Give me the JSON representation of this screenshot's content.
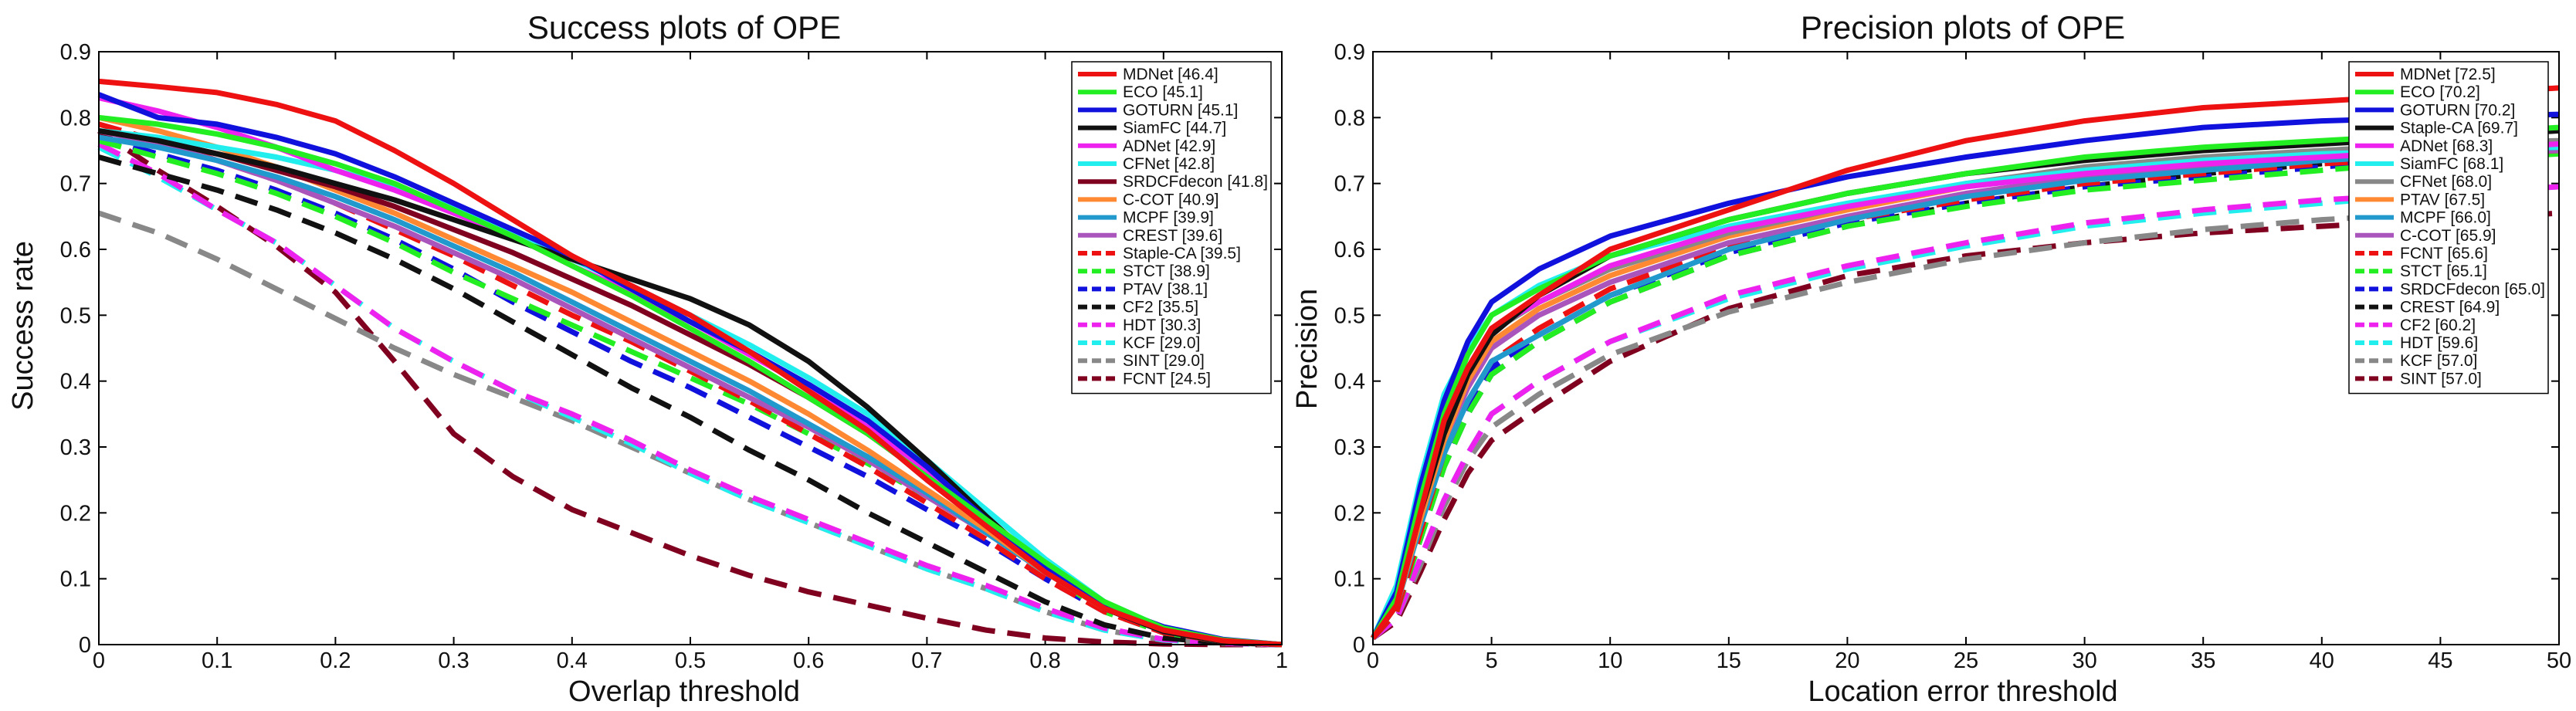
{
  "chart_data": [
    {
      "type": "line",
      "title": "Success plots of OPE",
      "xlabel": "Overlap threshold",
      "ylabel": "Success rate",
      "xlim": [
        0,
        1
      ],
      "ylim": [
        0,
        0.9
      ],
      "xticks": [
        "0",
        "0.1",
        "0.2",
        "0.3",
        "0.4",
        "0.5",
        "0.6",
        "0.7",
        "0.8",
        "0.9",
        "1"
      ],
      "yticks": [
        "0",
        "0.1",
        "0.2",
        "0.3",
        "0.4",
        "0.5",
        "0.6",
        "0.7",
        "0.8",
        "0.9"
      ],
      "legend_position": "top-right",
      "x": [
        0,
        0.05,
        0.1,
        0.15,
        0.2,
        0.25,
        0.3,
        0.35,
        0.4,
        0.45,
        0.5,
        0.55,
        0.6,
        0.65,
        0.7,
        0.75,
        0.8,
        0.85,
        0.9,
        0.95,
        1.0
      ],
      "series": [
        {
          "name": "MDNet [46.4]",
          "color": "#ee1111",
          "dash": false,
          "values": [
            0.855,
            0.847,
            0.838,
            0.82,
            0.795,
            0.75,
            0.7,
            0.645,
            0.59,
            0.545,
            0.5,
            0.445,
            0.385,
            0.325,
            0.25,
            0.18,
            0.11,
            0.055,
            0.022,
            0.006,
            0
          ]
        },
        {
          "name": "ECO [45.1]",
          "color": "#22ee22",
          "dash": false,
          "values": [
            0.8,
            0.79,
            0.775,
            0.755,
            0.73,
            0.7,
            0.66,
            0.62,
            0.575,
            0.53,
            0.48,
            0.43,
            0.375,
            0.32,
            0.255,
            0.19,
            0.125,
            0.065,
            0.025,
            0.007,
            0
          ]
        },
        {
          "name": "GOTURN [45.1]",
          "color": "#1111dd",
          "dash": false,
          "values": [
            0.835,
            0.8,
            0.79,
            0.77,
            0.745,
            0.71,
            0.67,
            0.63,
            0.59,
            0.54,
            0.49,
            0.445,
            0.395,
            0.34,
            0.27,
            0.19,
            0.115,
            0.06,
            0.027,
            0.008,
            0
          ]
        },
        {
          "name": "SiamFC [44.7]",
          "color": "#111111",
          "dash": false,
          "values": [
            0.78,
            0.765,
            0.745,
            0.725,
            0.7,
            0.675,
            0.645,
            0.615,
            0.585,
            0.555,
            0.525,
            0.485,
            0.43,
            0.36,
            0.28,
            0.195,
            0.115,
            0.055,
            0.02,
            0.005,
            0
          ]
        },
        {
          "name": "ADNet [42.9]",
          "color": "#ee22ee",
          "dash": false,
          "values": [
            0.83,
            0.81,
            0.785,
            0.755,
            0.72,
            0.69,
            0.655,
            0.62,
            0.575,
            0.535,
            0.49,
            0.44,
            0.39,
            0.33,
            0.26,
            0.185,
            0.115,
            0.055,
            0.02,
            0.006,
            0
          ]
        },
        {
          "name": "CFNet [42.8]",
          "color": "#22eeee",
          "dash": false,
          "values": [
            0.78,
            0.77,
            0.755,
            0.74,
            0.72,
            0.695,
            0.665,
            0.625,
            0.585,
            0.545,
            0.5,
            0.455,
            0.405,
            0.35,
            0.28,
            0.205,
            0.13,
            0.065,
            0.025,
            0.007,
            0
          ]
        },
        {
          "name": "SRDCFdecon [41.8]",
          "color": "#800020",
          "dash": false,
          "values": [
            0.78,
            0.765,
            0.745,
            0.72,
            0.695,
            0.665,
            0.63,
            0.595,
            0.555,
            0.515,
            0.47,
            0.425,
            0.375,
            0.32,
            0.255,
            0.185,
            0.115,
            0.055,
            0.02,
            0.005,
            0
          ]
        },
        {
          "name": "C-COT [40.9]",
          "color": "#ff8833",
          "dash": false,
          "values": [
            0.8,
            0.78,
            0.755,
            0.725,
            0.69,
            0.655,
            0.615,
            0.575,
            0.535,
            0.49,
            0.445,
            0.4,
            0.35,
            0.295,
            0.235,
            0.175,
            0.11,
            0.055,
            0.02,
            0.005,
            0
          ]
        },
        {
          "name": "MCPF [39.9]",
          "color": "#2299cc",
          "dash": false,
          "values": [
            0.77,
            0.755,
            0.735,
            0.71,
            0.68,
            0.645,
            0.605,
            0.565,
            0.52,
            0.475,
            0.43,
            0.385,
            0.335,
            0.285,
            0.23,
            0.17,
            0.11,
            0.055,
            0.02,
            0.005,
            0
          ]
        },
        {
          "name": "CREST [39.6]",
          "color": "#aa55bb",
          "dash": false,
          "values": [
            0.78,
            0.76,
            0.735,
            0.705,
            0.67,
            0.635,
            0.595,
            0.555,
            0.51,
            0.465,
            0.42,
            0.375,
            0.33,
            0.28,
            0.225,
            0.17,
            0.11,
            0.055,
            0.02,
            0.005,
            0
          ]
        },
        {
          "name": "Staple-CA [39.5]",
          "color": "#ee1111",
          "dash": true,
          "values": [
            0.79,
            0.765,
            0.735,
            0.705,
            0.67,
            0.63,
            0.59,
            0.545,
            0.5,
            0.46,
            0.415,
            0.37,
            0.32,
            0.27,
            0.215,
            0.16,
            0.1,
            0.05,
            0.018,
            0.005,
            0
          ]
        },
        {
          "name": "STCT [38.9]",
          "color": "#22ee22",
          "dash": true,
          "values": [
            0.765,
            0.74,
            0.715,
            0.685,
            0.65,
            0.61,
            0.565,
            0.525,
            0.485,
            0.445,
            0.405,
            0.365,
            0.32,
            0.275,
            0.225,
            0.17,
            0.11,
            0.05,
            0.018,
            0.005,
            0
          ]
        },
        {
          "name": "PTAV [38.1]",
          "color": "#1111dd",
          "dash": true,
          "values": [
            0.77,
            0.745,
            0.72,
            0.69,
            0.655,
            0.615,
            0.57,
            0.52,
            0.475,
            0.43,
            0.39,
            0.345,
            0.3,
            0.255,
            0.205,
            0.155,
            0.1,
            0.05,
            0.018,
            0.005,
            0
          ]
        },
        {
          "name": "CF2 [35.5]",
          "color": "#111111",
          "dash": true,
          "values": [
            0.74,
            0.715,
            0.69,
            0.66,
            0.625,
            0.585,
            0.54,
            0.49,
            0.44,
            0.39,
            0.345,
            0.295,
            0.25,
            0.2,
            0.155,
            0.11,
            0.065,
            0.03,
            0.01,
            0.003,
            0
          ]
        },
        {
          "name": "HDT [30.3]",
          "color": "#ee22ee",
          "dash": true,
          "values": [
            0.76,
            0.715,
            0.66,
            0.61,
            0.545,
            0.48,
            0.43,
            0.385,
            0.35,
            0.31,
            0.265,
            0.225,
            0.19,
            0.155,
            0.12,
            0.09,
            0.055,
            0.025,
            0.008,
            0.002,
            0
          ]
        },
        {
          "name": "KCF [29.0]",
          "color": "#22eeee",
          "dash": true,
          "values": [
            0.755,
            0.71,
            0.66,
            0.61,
            0.545,
            0.48,
            0.43,
            0.385,
            0.345,
            0.305,
            0.26,
            0.22,
            0.185,
            0.15,
            0.115,
            0.085,
            0.05,
            0.022,
            0.007,
            0.002,
            0
          ]
        },
        {
          "name": "SINT [29.0]",
          "color": "#888888",
          "dash": true,
          "values": [
            0.655,
            0.625,
            0.585,
            0.54,
            0.495,
            0.45,
            0.41,
            0.375,
            0.34,
            0.3,
            0.26,
            0.22,
            0.185,
            0.15,
            0.115,
            0.085,
            0.05,
            0.022,
            0.007,
            0.002,
            0
          ]
        },
        {
          "name": "FCNT [24.5]",
          "color": "#800020",
          "dash": true,
          "values": [
            0.78,
            0.72,
            0.665,
            0.605,
            0.535,
            0.43,
            0.32,
            0.255,
            0.205,
            0.17,
            0.135,
            0.105,
            0.08,
            0.06,
            0.04,
            0.022,
            0.01,
            0.004,
            0.001,
            0,
            0
          ]
        }
      ]
    },
    {
      "type": "line",
      "title": "Precision plots of OPE",
      "xlabel": "Location error threshold",
      "ylabel": "Precision",
      "xlim": [
        0,
        50
      ],
      "ylim": [
        0,
        0.9
      ],
      "xticks": [
        "0",
        "5",
        "10",
        "15",
        "20",
        "25",
        "30",
        "35",
        "40",
        "45",
        "50"
      ],
      "yticks": [
        "0",
        "0.1",
        "0.2",
        "0.3",
        "0.4",
        "0.5",
        "0.6",
        "0.7",
        "0.8",
        "0.9"
      ],
      "legend_position": "top-right",
      "x": [
        0,
        1,
        2,
        3,
        4,
        5,
        7,
        10,
        15,
        20,
        25,
        30,
        35,
        40,
        45,
        50
      ],
      "series": [
        {
          "name": "MDNet [72.5]",
          "color": "#ee1111",
          "dash": false,
          "values": [
            0.01,
            0.06,
            0.2,
            0.34,
            0.42,
            0.48,
            0.53,
            0.6,
            0.66,
            0.72,
            0.765,
            0.795,
            0.815,
            0.825,
            0.835,
            0.845
          ]
        },
        {
          "name": "ECO [70.2]",
          "color": "#22ee22",
          "dash": false,
          "values": [
            0.01,
            0.07,
            0.22,
            0.35,
            0.44,
            0.5,
            0.54,
            0.59,
            0.645,
            0.685,
            0.715,
            0.74,
            0.755,
            0.765,
            0.775,
            0.785
          ]
        },
        {
          "name": "GOTURN [70.2]",
          "color": "#1111dd",
          "dash": false,
          "values": [
            0.01,
            0.08,
            0.24,
            0.37,
            0.46,
            0.52,
            0.57,
            0.62,
            0.67,
            0.71,
            0.74,
            0.765,
            0.785,
            0.795,
            0.8,
            0.805
          ]
        },
        {
          "name": "Staple-CA [69.7]",
          "color": "#111111",
          "dash": false,
          "values": [
            0.01,
            0.06,
            0.2,
            0.32,
            0.41,
            0.47,
            0.53,
            0.59,
            0.645,
            0.685,
            0.715,
            0.735,
            0.75,
            0.76,
            0.77,
            0.78
          ]
        },
        {
          "name": "ADNet [68.3]",
          "color": "#ee22ee",
          "dash": false,
          "values": [
            0.01,
            0.07,
            0.21,
            0.33,
            0.42,
            0.48,
            0.52,
            0.575,
            0.63,
            0.665,
            0.695,
            0.715,
            0.73,
            0.74,
            0.75,
            0.76
          ]
        },
        {
          "name": "SiamFC [68.1]",
          "color": "#22eeee",
          "dash": false,
          "values": [
            0.01,
            0.09,
            0.25,
            0.38,
            0.45,
            0.5,
            0.545,
            0.59,
            0.635,
            0.67,
            0.7,
            0.72,
            0.735,
            0.745,
            0.75,
            0.755
          ]
        },
        {
          "name": "CFNet [68.0]",
          "color": "#888888",
          "dash": false,
          "values": [
            0.01,
            0.07,
            0.22,
            0.34,
            0.42,
            0.475,
            0.52,
            0.57,
            0.625,
            0.665,
            0.7,
            0.725,
            0.74,
            0.75,
            0.76,
            0.765
          ]
        },
        {
          "name": "PTAV [67.5]",
          "color": "#ff8833",
          "dash": false,
          "values": [
            0.01,
            0.06,
            0.19,
            0.31,
            0.4,
            0.46,
            0.51,
            0.56,
            0.62,
            0.66,
            0.695,
            0.72,
            0.735,
            0.745,
            0.755,
            0.76
          ]
        },
        {
          "name": "MCPF [66.0]",
          "color": "#2299cc",
          "dash": false,
          "values": [
            0.01,
            0.06,
            0.18,
            0.29,
            0.37,
            0.43,
            0.47,
            0.53,
            0.6,
            0.645,
            0.68,
            0.705,
            0.72,
            0.735,
            0.745,
            0.755
          ]
        },
        {
          "name": "C-COT [65.9]",
          "color": "#aa55bb",
          "dash": false,
          "values": [
            0.01,
            0.06,
            0.19,
            0.31,
            0.39,
            0.45,
            0.5,
            0.55,
            0.61,
            0.65,
            0.685,
            0.71,
            0.725,
            0.735,
            0.745,
            0.75
          ]
        },
        {
          "name": "FCNT [65.6]",
          "color": "#ee1111",
          "dash": true,
          "values": [
            0.01,
            0.05,
            0.17,
            0.29,
            0.37,
            0.43,
            0.48,
            0.54,
            0.605,
            0.645,
            0.675,
            0.7,
            0.715,
            0.73,
            0.74,
            0.75
          ]
        },
        {
          "name": "STCT [65.1]",
          "color": "#22ee22",
          "dash": true,
          "values": [
            0.01,
            0.05,
            0.16,
            0.27,
            0.35,
            0.41,
            0.46,
            0.52,
            0.59,
            0.635,
            0.665,
            0.69,
            0.705,
            0.72,
            0.735,
            0.745
          ]
        },
        {
          "name": "SRDCFdecon [65.0]",
          "color": "#1111dd",
          "dash": true,
          "values": [
            0.01,
            0.05,
            0.17,
            0.28,
            0.36,
            0.42,
            0.47,
            0.53,
            0.595,
            0.64,
            0.67,
            0.695,
            0.71,
            0.725,
            0.74,
            0.75
          ]
        },
        {
          "name": "CREST [64.9]",
          "color": "#111111",
          "dash": true,
          "values": [
            0.01,
            0.05,
            0.16,
            0.27,
            0.35,
            0.41,
            0.46,
            0.52,
            0.59,
            0.635,
            0.67,
            0.695,
            0.715,
            0.73,
            0.74,
            0.75
          ]
        },
        {
          "name": "CF2 [60.2]",
          "color": "#ee22ee",
          "dash": true,
          "values": [
            0.01,
            0.04,
            0.13,
            0.22,
            0.29,
            0.35,
            0.4,
            0.46,
            0.53,
            0.575,
            0.61,
            0.64,
            0.66,
            0.675,
            0.685,
            0.695
          ]
        },
        {
          "name": "HDT [59.6]",
          "color": "#22eeee",
          "dash": true,
          "values": [
            0.01,
            0.04,
            0.13,
            0.22,
            0.29,
            0.35,
            0.4,
            0.46,
            0.525,
            0.57,
            0.605,
            0.635,
            0.655,
            0.67,
            0.685,
            0.695
          ]
        },
        {
          "name": "KCF [57.0]",
          "color": "#888888",
          "dash": true,
          "values": [
            0.01,
            0.04,
            0.12,
            0.21,
            0.28,
            0.33,
            0.38,
            0.44,
            0.505,
            0.55,
            0.585,
            0.61,
            0.63,
            0.645,
            0.655,
            0.665
          ]
        },
        {
          "name": "SINT [57.0]",
          "color": "#800020",
          "dash": true,
          "values": [
            0.01,
            0.035,
            0.11,
            0.19,
            0.26,
            0.31,
            0.36,
            0.43,
            0.51,
            0.56,
            0.59,
            0.61,
            0.625,
            0.635,
            0.645,
            0.655
          ]
        }
      ]
    }
  ]
}
